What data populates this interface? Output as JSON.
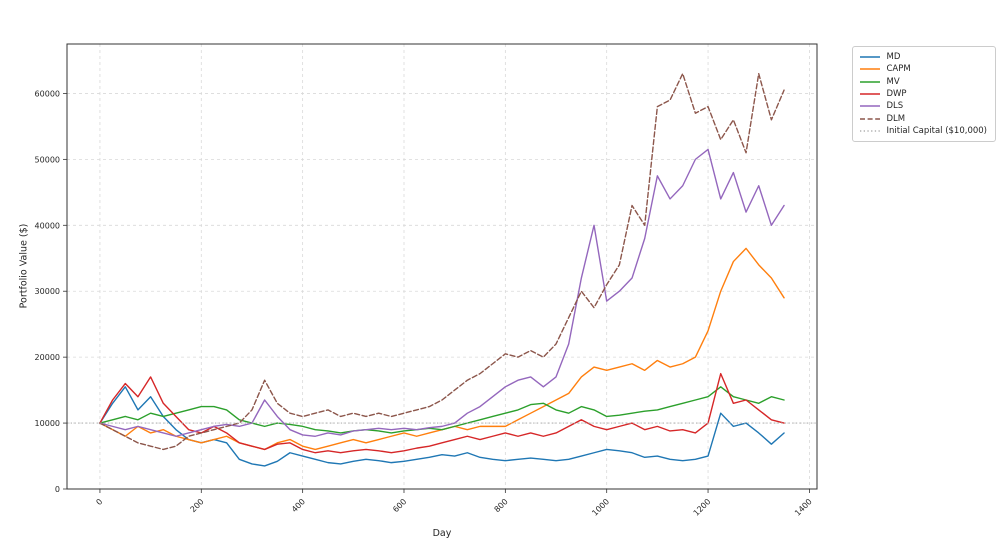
{
  "figure": {
    "background": "#ffffff"
  },
  "chart_data": {
    "type": "line",
    "title": "",
    "xlabel": "Day",
    "ylabel": "Portfolio Value ($)",
    "xlim": [
      -65,
      1415
    ],
    "ylim": [
      0,
      67500
    ],
    "xticks": [
      0,
      200,
      400,
      600,
      800,
      1000,
      1200,
      1400
    ],
    "yticks": [
      0,
      10000,
      20000,
      30000,
      40000,
      50000,
      60000
    ],
    "grid": true,
    "grid_color": "#d9d9d9",
    "legend_position": "upper right outside",
    "x": [
      0,
      25,
      50,
      75,
      100,
      125,
      150,
      175,
      200,
      225,
      250,
      275,
      300,
      325,
      350,
      375,
      400,
      425,
      450,
      475,
      500,
      525,
      550,
      575,
      600,
      625,
      650,
      675,
      700,
      725,
      750,
      775,
      800,
      825,
      850,
      875,
      900,
      925,
      950,
      975,
      1000,
      1025,
      1050,
      1075,
      1100,
      1125,
      1150,
      1175,
      1200,
      1225,
      1250,
      1275,
      1300,
      1325,
      1350
    ],
    "series": [
      {
        "name": "MD",
        "color": "#1f77b4",
        "style": "solid",
        "values": [
          10000,
          13000,
          15500,
          12000,
          14000,
          11000,
          9000,
          7500,
          7000,
          7500,
          7000,
          4500,
          3800,
          3500,
          4200,
          5500,
          5000,
          4500,
          4000,
          3800,
          4200,
          4500,
          4300,
          4000,
          4200,
          4500,
          4800,
          5200,
          5000,
          5500,
          4800,
          4500,
          4300,
          4500,
          4700,
          4500,
          4300,
          4500,
          5000,
          5500,
          6000,
          5800,
          5500,
          4800,
          5000,
          4500,
          4300,
          4500,
          5000,
          11500,
          9500,
          10000,
          8500,
          6800,
          8500
        ]
      },
      {
        "name": "CAPM",
        "color": "#ff7f0e",
        "style": "solid",
        "values": [
          10000,
          9000,
          8000,
          9500,
          8500,
          9000,
          8000,
          7500,
          7000,
          7500,
          8000,
          7000,
          6500,
          6000,
          7000,
          7500,
          6500,
          6000,
          6500,
          7000,
          7500,
          7000,
          7500,
          8000,
          8500,
          8000,
          8500,
          9000,
          9500,
          9000,
          9500,
          9500,
          9500,
          10500,
          11500,
          12500,
          13500,
          14500,
          17000,
          18500,
          18000,
          18500,
          19000,
          18000,
          19500,
          18500,
          19000,
          20000,
          24000,
          30000,
          34500,
          36500,
          34000,
          32000,
          29000
        ]
      },
      {
        "name": "MV",
        "color": "#2ca02c",
        "style": "solid",
        "values": [
          10000,
          10500,
          11000,
          10500,
          11500,
          11000,
          11500,
          12000,
          12500,
          12500,
          12000,
          10500,
          10000,
          9500,
          10000,
          9800,
          9500,
          9000,
          8800,
          8500,
          8800,
          9000,
          8800,
          8500,
          8800,
          9000,
          9200,
          9000,
          9500,
          10000,
          10500,
          11000,
          11500,
          12000,
          12800,
          13000,
          12000,
          11500,
          12500,
          12000,
          11000,
          11200,
          11500,
          11800,
          12000,
          12500,
          13000,
          13500,
          14000,
          15500,
          14000,
          13500,
          13000,
          14000,
          13500
        ]
      },
      {
        "name": "DWP",
        "color": "#d62728",
        "style": "solid",
        "values": [
          10000,
          13500,
          16000,
          14000,
          17000,
          13000,
          11000,
          9000,
          8500,
          9500,
          8500,
          7000,
          6500,
          6000,
          6800,
          7000,
          6000,
          5500,
          5800,
          5500,
          5800,
          6000,
          5800,
          5500,
          5800,
          6200,
          6500,
          7000,
          7500,
          8000,
          7500,
          8000,
          8500,
          8000,
          8500,
          8000,
          8500,
          9500,
          10500,
          9500,
          9000,
          9500,
          10000,
          9000,
          9500,
          8800,
          9000,
          8500,
          10000,
          17500,
          13000,
          13500,
          12000,
          10500,
          10000
        ]
      },
      {
        "name": "DLS",
        "color": "#9467bd",
        "style": "solid",
        "values": [
          10000,
          9500,
          9000,
          9500,
          9000,
          8500,
          8000,
          8500,
          9000,
          9500,
          9800,
          9500,
          10000,
          13500,
          11000,
          9000,
          8200,
          8000,
          8500,
          8200,
          8800,
          9000,
          9200,
          9000,
          9200,
          9000,
          9300,
          9500,
          10000,
          11500,
          12500,
          14000,
          15500,
          16500,
          17000,
          15500,
          17000,
          22000,
          32000,
          40000,
          28500,
          30000,
          32000,
          38000,
          47500,
          44000,
          46000,
          50000,
          51500,
          44000,
          48000,
          42000,
          46000,
          40000,
          43000
        ]
      },
      {
        "name": "DLM",
        "color": "#8c564b",
        "style": "dashed",
        "values": [
          10000,
          9000,
          8000,
          7000,
          6500,
          6000,
          6500,
          8000,
          8500,
          9000,
          9500,
          10000,
          12000,
          16500,
          13000,
          11500,
          11000,
          11500,
          12000,
          11000,
          11500,
          11000,
          11500,
          11000,
          11500,
          12000,
          12500,
          13500,
          15000,
          16500,
          17500,
          19000,
          20500,
          20000,
          21000,
          20000,
          22000,
          26000,
          30000,
          27500,
          31000,
          34000,
          43000,
          40000,
          58000,
          59000,
          63000,
          57000,
          58000,
          53000,
          56000,
          51000,
          63000,
          56000,
          60500
        ]
      }
    ],
    "reference_line": {
      "name": "Initial Capital ($10,000)",
      "value": 10000,
      "color": "#b0b0b0",
      "style": "dotted"
    }
  }
}
